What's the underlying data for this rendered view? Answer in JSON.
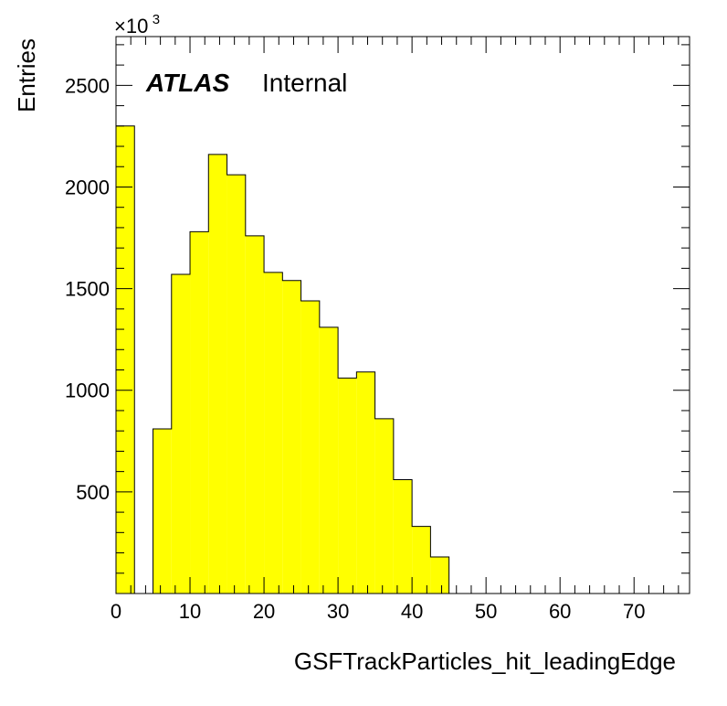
{
  "chart_data": {
    "type": "bar",
    "histogram": true,
    "bin_edges": [
      0,
      2.5,
      5,
      7.5,
      10,
      12.5,
      15,
      17.5,
      20,
      22.5,
      25,
      27.5,
      30,
      32.5,
      35,
      37.5,
      40,
      42.5,
      45,
      47.5,
      50,
      52.5,
      55,
      57.5,
      60,
      62.5,
      65,
      67.5,
      70,
      72.5,
      75,
      77.5
    ],
    "values": [
      2300,
      0,
      810,
      1570,
      1780,
      2160,
      2060,
      1760,
      1580,
      1540,
      1440,
      1310,
      1060,
      1090,
      860,
      560,
      330,
      180,
      0,
      0,
      0,
      0,
      0,
      0,
      0,
      0,
      0,
      0,
      0,
      0,
      0
    ],
    "xlabel": "GSFTrackParticles_hit_leadingEdge",
    "ylabel": "Entries",
    "y_multiplier_base": "×10",
    "y_multiplier_exp": "3",
    "xlim": [
      0,
      77.5
    ],
    "ylim": [
      0,
      2740
    ],
    "x_ticks": [
      0,
      10,
      20,
      30,
      40,
      50,
      60,
      70
    ],
    "x_tick_labels": [
      "0",
      "10",
      "20",
      "30",
      "40",
      "50",
      "60",
      "70"
    ],
    "y_ticks": [
      500,
      1000,
      1500,
      2000,
      2500
    ],
    "y_tick_labels": [
      "500",
      "1000",
      "1500",
      "2000",
      "2500"
    ],
    "fill_color": "#ffff00",
    "line_color": "#000000",
    "grid": false,
    "annotation": {
      "experiment": "ATLAS",
      "status": "Internal"
    }
  }
}
